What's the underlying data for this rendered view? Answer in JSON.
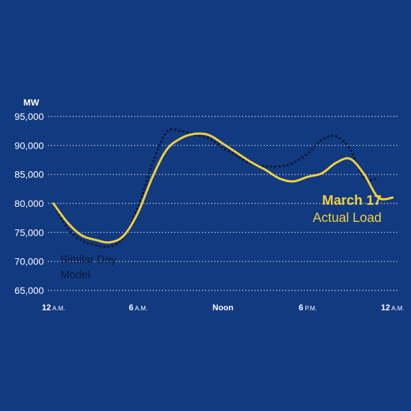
{
  "chart_data": {
    "type": "line",
    "unit_label": "MW",
    "ylim": [
      65000,
      95000
    ],
    "y_ticks": [
      95000,
      90000,
      85000,
      80000,
      75000,
      70000,
      65000
    ],
    "y_tick_labels": [
      "95,000",
      "90,000",
      "85,000",
      "80,000",
      "75,000",
      "70,000",
      "65,000"
    ],
    "xlim": [
      0,
      24
    ],
    "x_ticks": [
      {
        "hour": 0,
        "main": "12",
        "suffix": "A.M."
      },
      {
        "hour": 6,
        "main": "6",
        "suffix": "A.M."
      },
      {
        "hour": 12,
        "main": "Noon",
        "suffix": ""
      },
      {
        "hour": 18,
        "main": "6",
        "suffix": "P.M."
      },
      {
        "hour": 24,
        "main": "12",
        "suffix": "A.M."
      }
    ],
    "grid": true,
    "series": [
      {
        "name": "Actual Load",
        "style": "solid",
        "color": "#f2cf3c",
        "x": [
          0,
          1,
          2,
          3,
          4,
          5,
          6,
          7,
          8,
          9,
          10,
          11,
          12,
          13,
          14,
          15,
          16,
          17,
          18,
          19,
          20,
          21,
          22,
          23,
          24
        ],
        "y": [
          80000,
          76700,
          74500,
          73700,
          73300,
          74500,
          78500,
          84500,
          89200,
          91200,
          92000,
          91800,
          90300,
          88700,
          87100,
          85800,
          84300,
          83800,
          84600,
          85200,
          87000,
          87700,
          85000,
          81000,
          81000
        ]
      },
      {
        "name": "Similar Day Model",
        "style": "dotted",
        "color": "#0b1a3a",
        "x": [
          0,
          1,
          2,
          3,
          4,
          5,
          6,
          7,
          8,
          9,
          10,
          11,
          12,
          13,
          14,
          15,
          16,
          17,
          18,
          19,
          20,
          21,
          22,
          23
        ],
        "y": [
          80000,
          75700,
          73600,
          72800,
          72600,
          74200,
          79500,
          86800,
          92300,
          92500,
          91800,
          91200,
          89600,
          88200,
          86800,
          86400,
          86400,
          87000,
          88600,
          91000,
          91600,
          89300,
          84400,
          84400
        ]
      }
    ]
  },
  "annotations": {
    "model_line1": "Similar Day",
    "model_line2": "Model",
    "actual_title": "March 17",
    "actual_sub": "Actual Load"
  },
  "colors": {
    "background": "#123a80",
    "grid": "#ffffff",
    "actual": "#f2cf3c",
    "model": "#0b1a3a"
  }
}
